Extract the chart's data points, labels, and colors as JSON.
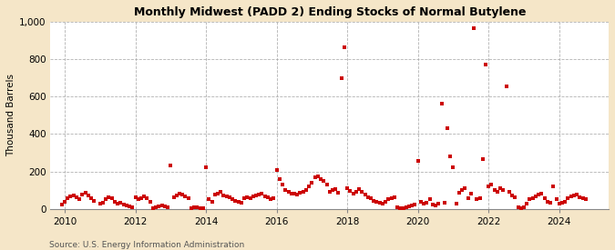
{
  "title": "Monthly Midwest (PADD 2) Ending Stocks of Normal Butylene",
  "ylabel": "Thousand Barrels",
  "source": "Source: U.S. Energy Information Administration",
  "bg_color": "#f5e6c8",
  "plot_bg_color": "#ffffff",
  "marker_color": "#cc0000",
  "marker_size": 5,
  "ylim": [
    0,
    1000
  ],
  "yticks": [
    0,
    200,
    400,
    600,
    800,
    1000
  ],
  "xlim_start": 2009.6,
  "xlim_end": 2025.4,
  "xticks": [
    2010,
    2012,
    2014,
    2016,
    2018,
    2020,
    2022,
    2024
  ],
  "data": [
    [
      2009.917,
      25
    ],
    [
      2010.0,
      40
    ],
    [
      2010.083,
      55
    ],
    [
      2010.167,
      65
    ],
    [
      2010.25,
      70
    ],
    [
      2010.333,
      60
    ],
    [
      2010.417,
      50
    ],
    [
      2010.5,
      75
    ],
    [
      2010.583,
      85
    ],
    [
      2010.667,
      70
    ],
    [
      2010.75,
      55
    ],
    [
      2010.833,
      45
    ],
    [
      2011.0,
      30
    ],
    [
      2011.083,
      35
    ],
    [
      2011.167,
      50
    ],
    [
      2011.25,
      60
    ],
    [
      2011.333,
      55
    ],
    [
      2011.417,
      40
    ],
    [
      2011.5,
      30
    ],
    [
      2011.583,
      35
    ],
    [
      2011.667,
      25
    ],
    [
      2011.75,
      20
    ],
    [
      2011.833,
      15
    ],
    [
      2011.917,
      10
    ],
    [
      2012.0,
      60
    ],
    [
      2012.083,
      50
    ],
    [
      2012.167,
      55
    ],
    [
      2012.25,
      65
    ],
    [
      2012.333,
      55
    ],
    [
      2012.417,
      40
    ],
    [
      2012.5,
      5
    ],
    [
      2012.583,
      10
    ],
    [
      2012.667,
      15
    ],
    [
      2012.75,
      20
    ],
    [
      2012.833,
      15
    ],
    [
      2012.917,
      10
    ],
    [
      2013.0,
      230
    ],
    [
      2013.083,
      60
    ],
    [
      2013.167,
      70
    ],
    [
      2013.25,
      80
    ],
    [
      2013.333,
      75
    ],
    [
      2013.417,
      65
    ],
    [
      2013.5,
      55
    ],
    [
      2013.583,
      5
    ],
    [
      2013.667,
      10
    ],
    [
      2013.75,
      10
    ],
    [
      2013.833,
      5
    ],
    [
      2013.917,
      2
    ],
    [
      2014.0,
      220
    ],
    [
      2014.083,
      50
    ],
    [
      2014.167,
      40
    ],
    [
      2014.25,
      75
    ],
    [
      2014.333,
      80
    ],
    [
      2014.417,
      90
    ],
    [
      2014.5,
      70
    ],
    [
      2014.583,
      65
    ],
    [
      2014.667,
      60
    ],
    [
      2014.75,
      50
    ],
    [
      2014.833,
      45
    ],
    [
      2014.917,
      40
    ],
    [
      2015.0,
      35
    ],
    [
      2015.083,
      55
    ],
    [
      2015.167,
      60
    ],
    [
      2015.25,
      55
    ],
    [
      2015.333,
      65
    ],
    [
      2015.417,
      70
    ],
    [
      2015.5,
      75
    ],
    [
      2015.583,
      80
    ],
    [
      2015.667,
      65
    ],
    [
      2015.75,
      60
    ],
    [
      2015.833,
      50
    ],
    [
      2015.917,
      55
    ],
    [
      2016.0,
      210
    ],
    [
      2016.083,
      160
    ],
    [
      2016.167,
      130
    ],
    [
      2016.25,
      100
    ],
    [
      2016.333,
      90
    ],
    [
      2016.417,
      80
    ],
    [
      2016.5,
      80
    ],
    [
      2016.583,
      75
    ],
    [
      2016.667,
      85
    ],
    [
      2016.75,
      90
    ],
    [
      2016.833,
      100
    ],
    [
      2016.917,
      120
    ],
    [
      2017.0,
      140
    ],
    [
      2017.083,
      170
    ],
    [
      2017.167,
      175
    ],
    [
      2017.25,
      160
    ],
    [
      2017.333,
      150
    ],
    [
      2017.417,
      130
    ],
    [
      2017.5,
      90
    ],
    [
      2017.583,
      100
    ],
    [
      2017.667,
      105
    ],
    [
      2017.75,
      85
    ],
    [
      2017.833,
      700
    ],
    [
      2017.917,
      865
    ],
    [
      2018.0,
      110
    ],
    [
      2018.083,
      95
    ],
    [
      2018.167,
      80
    ],
    [
      2018.25,
      90
    ],
    [
      2018.333,
      105
    ],
    [
      2018.417,
      90
    ],
    [
      2018.5,
      75
    ],
    [
      2018.583,
      60
    ],
    [
      2018.667,
      55
    ],
    [
      2018.75,
      45
    ],
    [
      2018.833,
      40
    ],
    [
      2018.917,
      35
    ],
    [
      2019.0,
      30
    ],
    [
      2019.083,
      40
    ],
    [
      2019.167,
      50
    ],
    [
      2019.25,
      55
    ],
    [
      2019.333,
      60
    ],
    [
      2019.417,
      10
    ],
    [
      2019.5,
      5
    ],
    [
      2019.583,
      5
    ],
    [
      2019.667,
      10
    ],
    [
      2019.75,
      15
    ],
    [
      2019.833,
      20
    ],
    [
      2019.917,
      25
    ],
    [
      2020.0,
      255
    ],
    [
      2020.083,
      40
    ],
    [
      2020.167,
      30
    ],
    [
      2020.25,
      35
    ],
    [
      2020.333,
      50
    ],
    [
      2020.417,
      25
    ],
    [
      2020.5,
      20
    ],
    [
      2020.583,
      30
    ],
    [
      2020.667,
      560
    ],
    [
      2020.75,
      35
    ],
    [
      2020.833,
      430
    ],
    [
      2020.917,
      280
    ],
    [
      2021.0,
      220
    ],
    [
      2021.083,
      30
    ],
    [
      2021.167,
      85
    ],
    [
      2021.25,
      100
    ],
    [
      2021.333,
      110
    ],
    [
      2021.417,
      55
    ],
    [
      2021.5,
      80
    ],
    [
      2021.583,
      965
    ],
    [
      2021.667,
      50
    ],
    [
      2021.75,
      55
    ],
    [
      2021.833,
      265
    ],
    [
      2021.917,
      770
    ],
    [
      2022.0,
      120
    ],
    [
      2022.083,
      130
    ],
    [
      2022.167,
      100
    ],
    [
      2022.25,
      90
    ],
    [
      2022.333,
      110
    ],
    [
      2022.417,
      100
    ],
    [
      2022.5,
      655
    ],
    [
      2022.583,
      90
    ],
    [
      2022.667,
      70
    ],
    [
      2022.75,
      60
    ],
    [
      2022.833,
      10
    ],
    [
      2022.917,
      5
    ],
    [
      2023.0,
      10
    ],
    [
      2023.083,
      30
    ],
    [
      2023.167,
      50
    ],
    [
      2023.25,
      55
    ],
    [
      2023.333,
      65
    ],
    [
      2023.417,
      75
    ],
    [
      2023.5,
      80
    ],
    [
      2023.583,
      55
    ],
    [
      2023.667,
      40
    ],
    [
      2023.75,
      35
    ],
    [
      2023.833,
      120
    ],
    [
      2023.917,
      50
    ],
    [
      2024.0,
      30
    ],
    [
      2024.083,
      35
    ],
    [
      2024.167,
      40
    ],
    [
      2024.25,
      55
    ],
    [
      2024.333,
      65
    ],
    [
      2024.417,
      70
    ],
    [
      2024.5,
      75
    ],
    [
      2024.583,
      60
    ],
    [
      2024.667,
      55
    ],
    [
      2024.75,
      50
    ]
  ]
}
